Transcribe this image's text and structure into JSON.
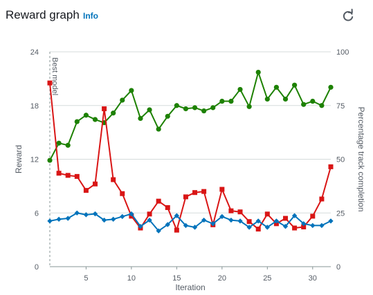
{
  "header": {
    "title": "Reward graph",
    "info_label": "Info",
    "refresh_icon": "refresh-icon"
  },
  "chart_data": {
    "type": "line",
    "xlabel": "Iteration",
    "ylabel_left": "Reward",
    "ylabel_right": "Percentage track completion",
    "xlim": [
      1,
      32
    ],
    "ylim_left": [
      0,
      24
    ],
    "ylim_right": [
      0,
      100
    ],
    "xticks": [
      5,
      10,
      15,
      20,
      25,
      30
    ],
    "yticks_left": [
      0,
      6,
      12,
      18,
      24
    ],
    "yticks_right": [
      0,
      25,
      50,
      75,
      100
    ],
    "grid": "horizontal",
    "annotation": {
      "label": "Best model",
      "x": 1
    },
    "x": [
      1,
      2,
      3,
      4,
      5,
      6,
      7,
      8,
      9,
      10,
      11,
      12,
      13,
      14,
      15,
      16,
      17,
      18,
      19,
      20,
      21,
      22,
      23,
      24,
      25,
      26,
      27,
      28,
      29,
      30,
      31,
      32
    ],
    "series": [
      {
        "axis": "right",
        "color": "#1d8102",
        "marker": "circle",
        "values": [
          49.5,
          57.5,
          56.5,
          67.5,
          70.5,
          68.5,
          67,
          71.5,
          77.5,
          82,
          69,
          73,
          64,
          70,
          75,
          73.5,
          74,
          72.5,
          74,
          77,
          77,
          82.5,
          74.5,
          90.5,
          78,
          83.5,
          78,
          84.5,
          75.5,
          77,
          75,
          83.5
        ]
      },
      {
        "axis": "right",
        "color": "#d91515",
        "marker": "square",
        "values": [
          85.5,
          43.5,
          42.5,
          42,
          35.5,
          38.5,
          73.5,
          40.5,
          34,
          23.5,
          18,
          24.5,
          30.5,
          27.5,
          17,
          32.5,
          34.5,
          35,
          19.5,
          36,
          26,
          25.5,
          21,
          17.5,
          24.5,
          20,
          22.5,
          18,
          18.5,
          23.5,
          31.5,
          46.5
        ]
      },
      {
        "axis": "left",
        "color": "#0073bb",
        "marker": "diamond",
        "values": [
          5.1,
          5.3,
          5.4,
          6.0,
          5.8,
          5.9,
          5.2,
          5.3,
          5.6,
          5.9,
          4.5,
          5.2,
          4.0,
          4.7,
          5.7,
          4.6,
          4.4,
          5.2,
          4.8,
          5.6,
          5.2,
          5.1,
          4.4,
          5.1,
          4.4,
          5.1,
          4.5,
          5.7,
          4.8,
          4.6,
          4.6,
          5.1
        ]
      }
    ]
  }
}
